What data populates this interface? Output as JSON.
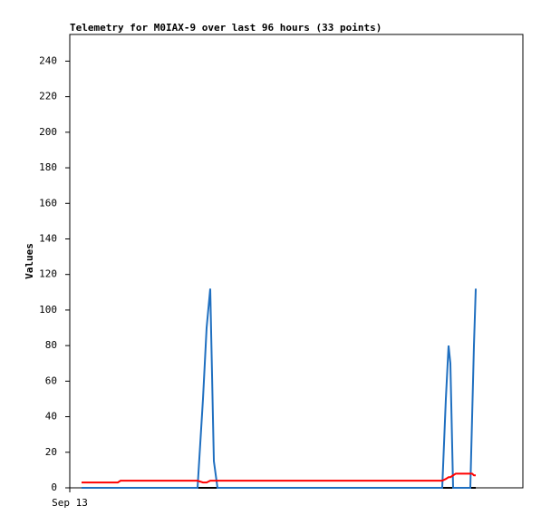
{
  "chart_data": {
    "type": "line",
    "title": "Telemetry for M0IAX-9 over last 96 hours (33 points)",
    "ylabel": "Values",
    "x": [
      2.6,
      6.6,
      10.6,
      11.2,
      16.6,
      22.6,
      28.2,
      29.4,
      30.2,
      31,
      31.8,
      32.6,
      38.6,
      44.6,
      50.6,
      56.6,
      62.6,
      68.6,
      74.6,
      80.6,
      82.2,
      83,
      83.6,
      84,
      84.6,
      85.2,
      86.2,
      87.2,
      88,
      88.4,
      88.8,
      89.2,
      89.6
    ],
    "series": [
      {
        "color": "#000000",
        "values": [
          0,
          0,
          0,
          0,
          0,
          0,
          0,
          0,
          0,
          0,
          0,
          0,
          0,
          0,
          0,
          0,
          0,
          0,
          0,
          0,
          0,
          0,
          0,
          0,
          0,
          0,
          0,
          0,
          0,
          0,
          0,
          0,
          0
        ]
      },
      {
        "color": "#1f6fc0",
        "values": [
          0,
          0,
          0,
          0,
          0,
          0,
          0,
          50,
          90,
          112,
          15,
          0,
          0,
          0,
          0,
          0,
          0,
          0,
          0,
          0,
          0,
          50,
          80,
          70,
          0,
          0,
          0,
          0,
          0,
          0,
          40,
          80,
          112
        ]
      },
      {
        "color": "#ff0000",
        "values": [
          3,
          3,
          3,
          4,
          4,
          4,
          4,
          3,
          3,
          4,
          4,
          4,
          4,
          4,
          4,
          4,
          4,
          4,
          4,
          4,
          4,
          5,
          6,
          6,
          7,
          8,
          8,
          8,
          8,
          8,
          8,
          7,
          7
        ]
      }
    ],
    "xlim": [
      0,
      100
    ],
    "xticks": [
      {
        "value": 0,
        "label": "Sep 13"
      }
    ],
    "ylim": [
      0,
      255
    ],
    "yticks": [
      0,
      20,
      40,
      60,
      80,
      100,
      120,
      140,
      160,
      180,
      200,
      220,
      240
    ]
  }
}
